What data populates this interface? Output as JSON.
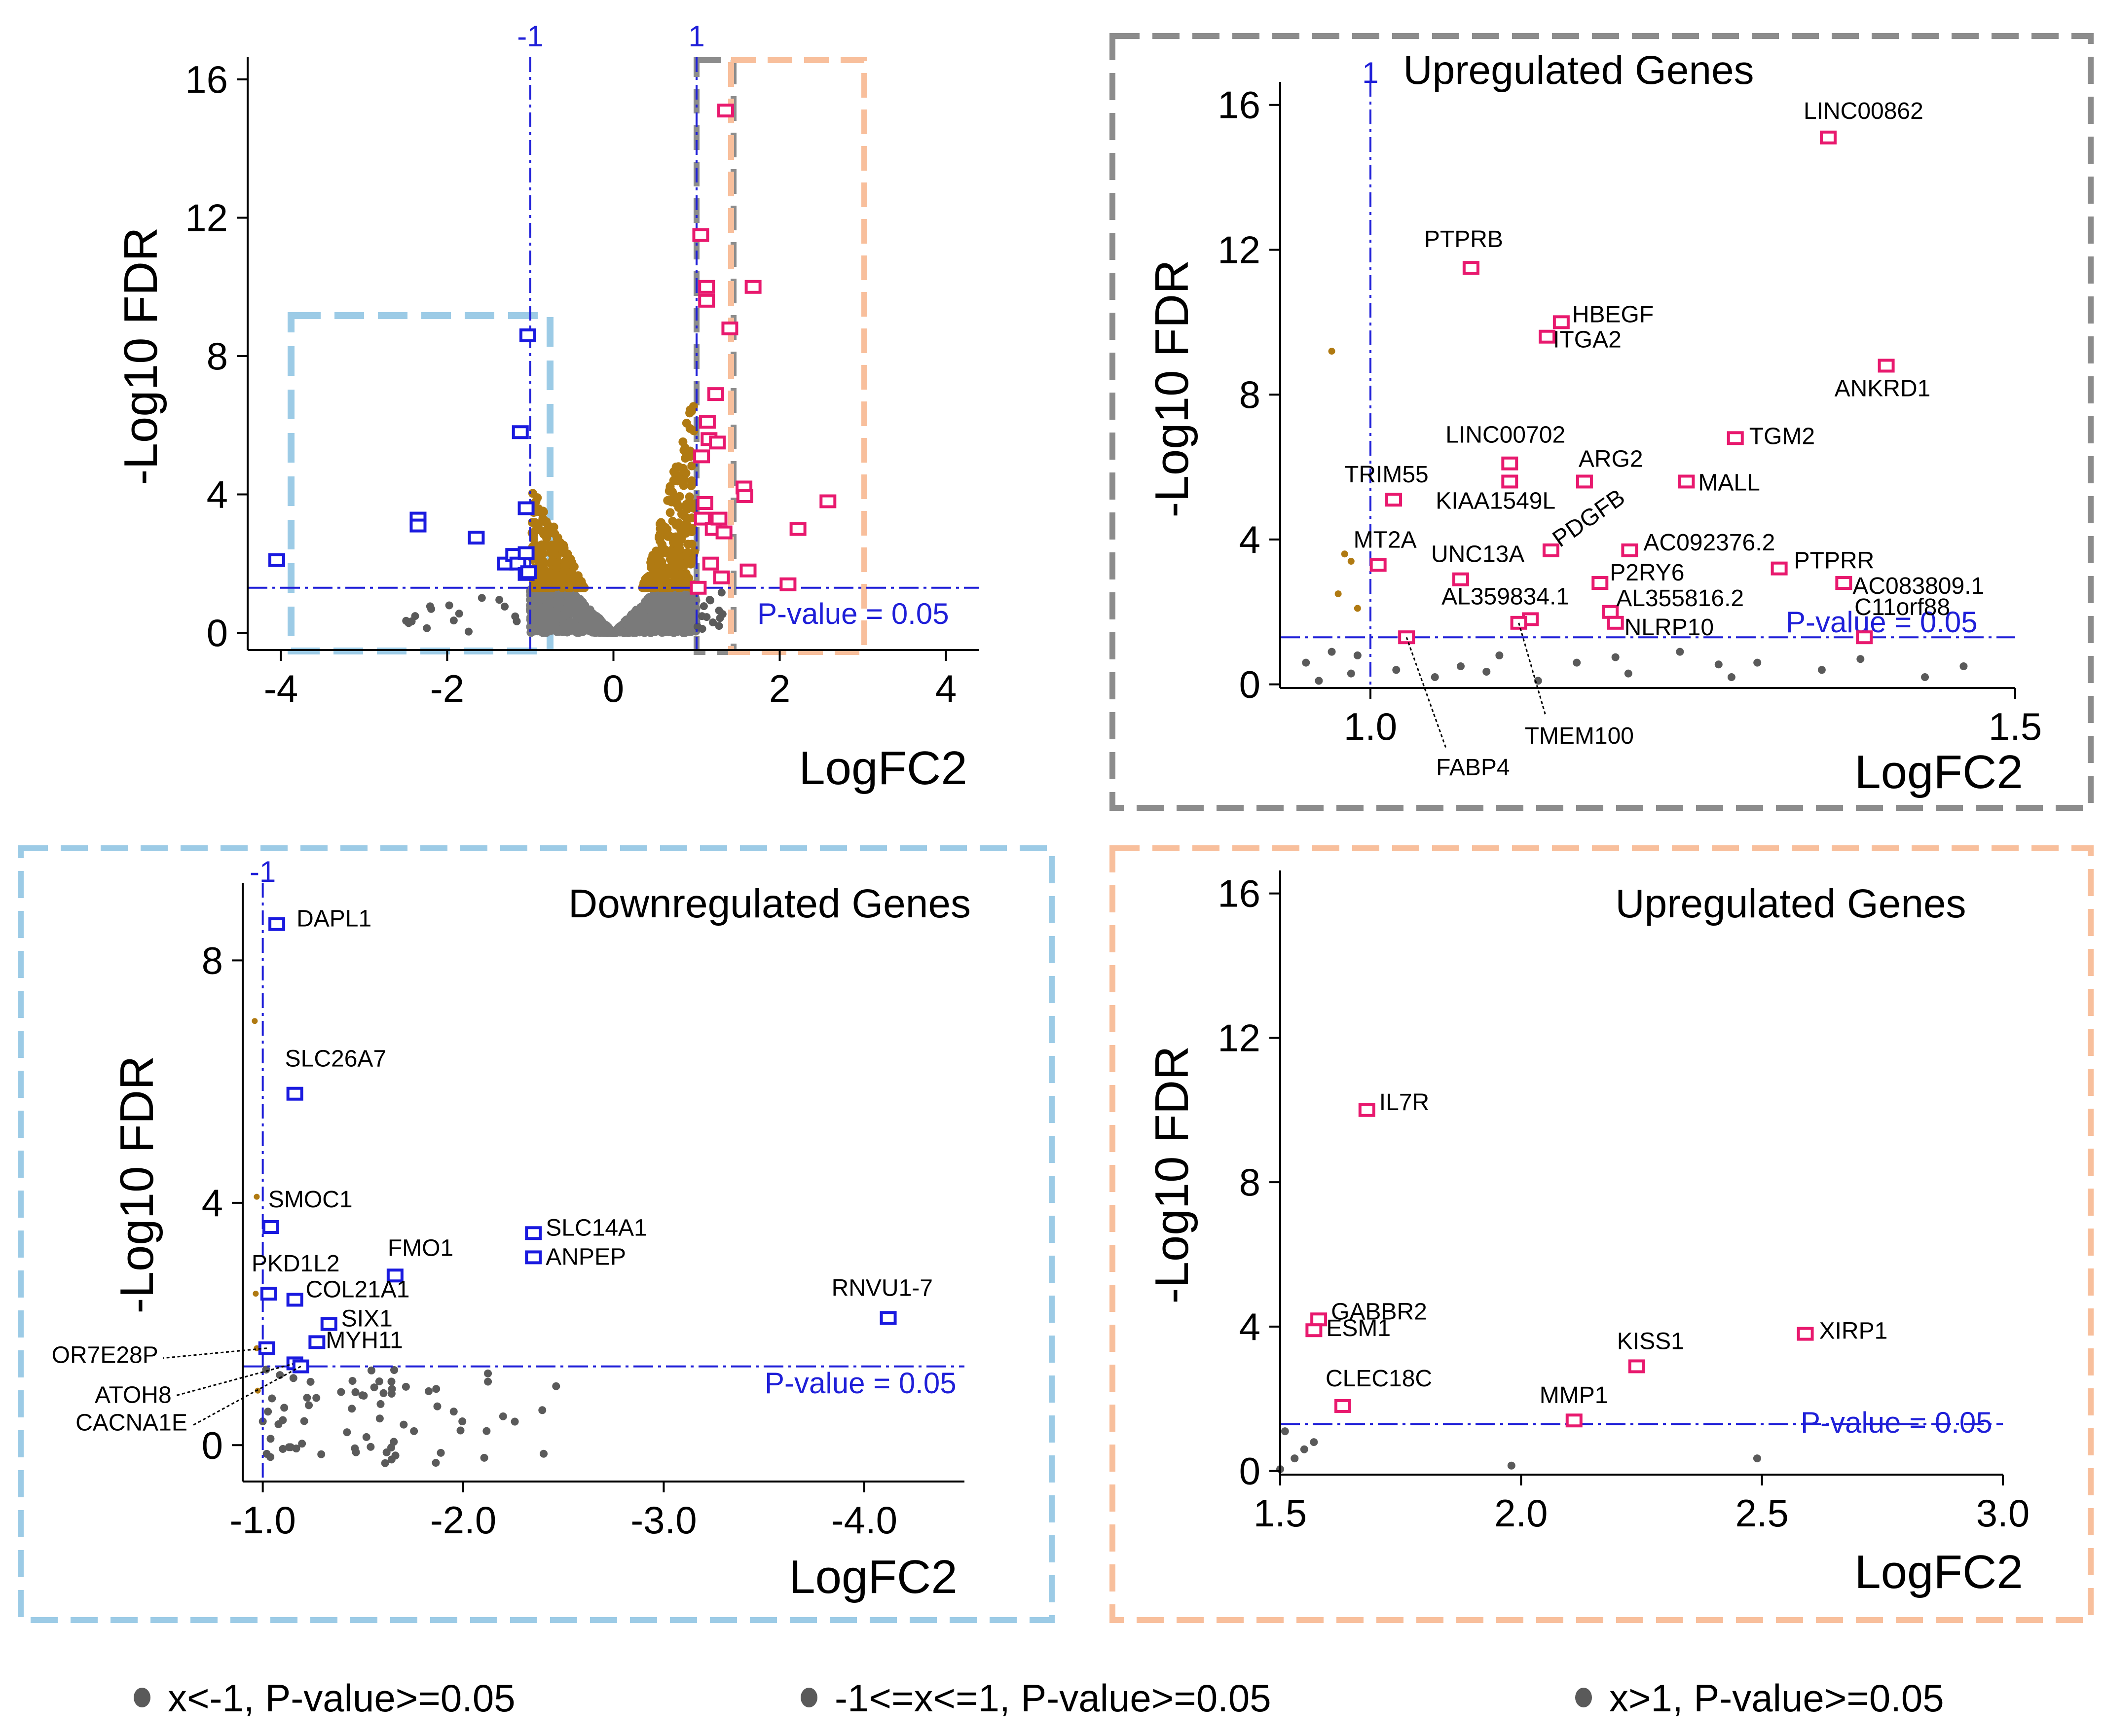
{
  "colors": {
    "up": "#e8196e",
    "down": "#1a1adf",
    "brown": "#b07a12",
    "gray": "#7a7a7a",
    "darkgray": "#5a5a5a",
    "ref": "#1f1fd8",
    "box_blue": "#9ccbe6",
    "box_gray": "#8c8c8c",
    "box_orange": "#f8bf9c"
  },
  "chart_data": [
    {
      "id": "overview",
      "type": "scatter",
      "title": "",
      "xlabel": "LogFC2",
      "ylabel": "-Log10 FDR",
      "xlim": [
        -4.4,
        4.4
      ],
      "ylim": [
        -0.5,
        16.5
      ],
      "xticks": [
        -4,
        -2,
        0,
        2,
        4
      ],
      "xtick_labels": [
        "-4",
        "-2",
        "0",
        "2",
        "4"
      ],
      "yticks": [
        0,
        4,
        8,
        12,
        16
      ],
      "ytick_labels": [
        "0",
        "4",
        "8",
        "12",
        "16"
      ],
      "ref_lines": {
        "vertical": [
          {
            "x": -1,
            "label": "-1"
          },
          {
            "x": 1,
            "label": "1"
          }
        ],
        "horizontal": {
          "y": 1.3,
          "label": "P-value  = 0.05"
        }
      },
      "series": [
        {
          "name": "down",
          "values": [
            [
              -4.05,
              2.1
            ],
            [
              -2.35,
              3.3
            ],
            [
              -2.35,
              3.1
            ],
            [
              -1.65,
              2.75
            ],
            [
              -1.3,
              2.0
            ],
            [
              -1.2,
              2.25
            ],
            [
              -1.15,
              2.0
            ],
            [
              -1.12,
              5.8
            ],
            [
              -1.05,
              2.3
            ],
            [
              -1.05,
              1.7
            ],
            [
              -1.05,
              3.6
            ],
            [
              -1.03,
              8.6
            ],
            [
              -1.02,
              1.75
            ]
          ]
        },
        {
          "name": "up",
          "values": [
            [
              1.02,
              1.3
            ],
            [
              1.05,
              11.5
            ],
            [
              1.06,
              5.1
            ],
            [
              1.07,
              3.3
            ],
            [
              1.1,
              3.75
            ],
            [
              1.12,
              10.0
            ],
            [
              1.12,
              9.6
            ],
            [
              1.13,
              6.1
            ],
            [
              1.15,
              5.6
            ],
            [
              1.17,
              2.0
            ],
            [
              1.2,
              3.0
            ],
            [
              1.23,
              6.9
            ],
            [
              1.25,
              5.5
            ],
            [
              1.27,
              3.3
            ],
            [
              1.3,
              1.6
            ],
            [
              1.33,
              2.9
            ],
            [
              1.35,
              15.1
            ],
            [
              1.4,
              8.8
            ],
            [
              1.57,
              4.2
            ],
            [
              1.58,
              3.95
            ],
            [
              1.62,
              1.8
            ],
            [
              1.68,
              10.0
            ],
            [
              2.1,
              1.4
            ],
            [
              2.22,
              3.0
            ],
            [
              2.58,
              3.8
            ]
          ]
        }
      ]
    },
    {
      "id": "upregulated-zoom-1",
      "type": "scatter",
      "title": "Upregulated Genes",
      "xlabel": "LogFC2",
      "ylabel": "-Log10 FDR",
      "xlim": [
        0.93,
        1.5
      ],
      "ylim": [
        -0.1,
        16.5
      ],
      "xticks": [
        1.0,
        1.5
      ],
      "xtick_labels": [
        "1.0",
        "1.5"
      ],
      "yticks": [
        0,
        4,
        8,
        12,
        16
      ],
      "ytick_labels": [
        "0",
        "4",
        "8",
        "12",
        "16"
      ],
      "ref_lines": {
        "vertical": [
          {
            "x": 1.0,
            "label": "1"
          }
        ],
        "horizontal": {
          "y": 1.3,
          "label": "P-value  = 0.05"
        }
      },
      "genes": [
        {
          "name": "LINC00862",
          "x": 1.355,
          "y": 15.1
        },
        {
          "name": "PTPRB",
          "x": 1.078,
          "y": 11.5
        },
        {
          "name": "HBEGF",
          "x": 1.148,
          "y": 10.0
        },
        {
          "name": "ITGA2",
          "x": 1.137,
          "y": 9.6
        },
        {
          "name": "ANKRD1",
          "x": 1.4,
          "y": 8.8
        },
        {
          "name": "TGM2",
          "x": 1.283,
          "y": 6.8
        },
        {
          "name": "LINC00702",
          "x": 1.108,
          "y": 6.1
        },
        {
          "name": "ARG2",
          "x": 1.166,
          "y": 5.6
        },
        {
          "name": "MALL",
          "x": 1.245,
          "y": 5.6
        },
        {
          "name": "TRIM55",
          "x": 1.018,
          "y": 5.1
        },
        {
          "name": "KIAA1549L",
          "x": 1.108,
          "y": 5.6
        },
        {
          "name": "PDGFB",
          "x": 1.14,
          "y": 3.7
        },
        {
          "name": "AC092376.2",
          "x": 1.201,
          "y": 3.7
        },
        {
          "name": "MT2A",
          "x": 1.006,
          "y": 3.3
        },
        {
          "name": "UNC13A",
          "x": 1.07,
          "y": 2.9
        },
        {
          "name": "P2RY6",
          "x": 1.178,
          "y": 2.8
        },
        {
          "name": "PTPRR",
          "x": 1.317,
          "y": 3.2
        },
        {
          "name": "AC083809.1",
          "x": 1.367,
          "y": 2.8
        },
        {
          "name": "AL359834.1",
          "x": 1.124,
          "y": 1.8
        },
        {
          "name": "AL355816.2",
          "x": 1.186,
          "y": 2.0
        },
        {
          "name": "NLRP10",
          "x": 1.19,
          "y": 1.7
        },
        {
          "name": "C11orf88",
          "x": 1.383,
          "y": 1.3
        },
        {
          "name": "FABP4",
          "x": 1.028,
          "y": 1.3
        },
        {
          "name": "TMEM100",
          "x": 1.115,
          "y": 1.7
        }
      ]
    },
    {
      "id": "downregulated-zoom",
      "type": "scatter",
      "title": "Downregulated Genes",
      "xlabel": "LogFC2",
      "ylabel": "-Log10 FDR",
      "xlim": [
        -0.9,
        -4.5
      ],
      "ylim": [
        -0.6,
        9.2
      ],
      "xticks": [
        -1.0,
        -2.0,
        -3.0,
        -4.0
      ],
      "xtick_labels": [
        "-1.0",
        "-2.0",
        "-3.0",
        "-4.0"
      ],
      "yticks": [
        0,
        4,
        8
      ],
      "ytick_labels": [
        "0",
        "4",
        "8"
      ],
      "ref_lines": {
        "vertical": [
          {
            "x": -1.0,
            "label": "-1"
          }
        ],
        "horizontal": {
          "y": 1.3,
          "label": "P-value  = 0.05"
        }
      },
      "genes": [
        {
          "name": "DAPL1",
          "x": -1.07,
          "y": 8.6
        },
        {
          "name": "SLC26A7",
          "x": -1.16,
          "y": 5.8
        },
        {
          "name": "SMOC1",
          "x": -1.04,
          "y": 3.6
        },
        {
          "name": "SLC14A1",
          "x": -2.35,
          "y": 3.5
        },
        {
          "name": "ANPEP",
          "x": -2.35,
          "y": 3.1
        },
        {
          "name": "FMO1",
          "x": -1.66,
          "y": 2.8
        },
        {
          "name": "PKD1L2",
          "x": -1.03,
          "y": 2.5
        },
        {
          "name": "COL21A1",
          "x": -1.16,
          "y": 2.4
        },
        {
          "name": "SIX1",
          "x": -1.33,
          "y": 2.0
        },
        {
          "name": "MYH11",
          "x": -1.27,
          "y": 1.7
        },
        {
          "name": "RNVU1-7",
          "x": -4.12,
          "y": 2.1
        },
        {
          "name": "OR7E28P",
          "x": -1.02,
          "y": 1.6
        },
        {
          "name": "ATOH8",
          "x": -1.16,
          "y": 1.35
        },
        {
          "name": "CACNA1E",
          "x": -1.19,
          "y": 1.3
        }
      ]
    },
    {
      "id": "upregulated-zoom-2",
      "type": "scatter",
      "title": "Upregulated Genes",
      "xlabel": "LogFC2",
      "ylabel": "-Log10 FDR",
      "xlim": [
        1.5,
        3.0
      ],
      "ylim": [
        -0.1,
        16.5
      ],
      "xticks": [
        1.5,
        2.0,
        2.5,
        3.0
      ],
      "xtick_labels": [
        "1.5",
        "2.0",
        "2.5",
        "3.0"
      ],
      "yticks": [
        0,
        4,
        8,
        12,
        16
      ],
      "ytick_labels": [
        "0",
        "4",
        "8",
        "12",
        "16"
      ],
      "ref_lines": {
        "vertical": [],
        "horizontal": {
          "y": 1.3,
          "label": "P-value  = 0.05"
        }
      },
      "genes": [
        {
          "name": "IL7R",
          "x": 1.68,
          "y": 10.0
        },
        {
          "name": "GABBR2",
          "x": 1.58,
          "y": 4.2
        },
        {
          "name": "ESM1",
          "x": 1.57,
          "y": 3.9
        },
        {
          "name": "XIRP1",
          "x": 2.59,
          "y": 3.8
        },
        {
          "name": "KISS1",
          "x": 2.24,
          "y": 2.9
        },
        {
          "name": "CLEC18C",
          "x": 1.63,
          "y": 1.8
        },
        {
          "name": "MMP1",
          "x": 2.11,
          "y": 1.4
        }
      ]
    }
  ],
  "legend": [
    {
      "text": "x<-1, P-value>=0.05"
    },
    {
      "text": "-1<=x<=1, P-value>=0.05"
    },
    {
      "text": "x>1, P-value>=0.05"
    }
  ]
}
